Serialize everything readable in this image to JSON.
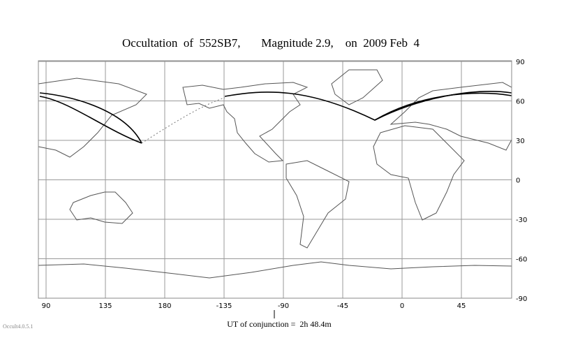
{
  "title": "Occultation  of  552SB7,       Magnitude 2.9,    on  2009 Feb  4",
  "map": {
    "xticks": [
      90,
      135,
      180,
      -135,
      -90,
      -45,
      0,
      45
    ],
    "yticks": [
      90,
      60,
      30,
      0,
      -30,
      -60,
      -90
    ]
  },
  "conjunction_label": "UT of conjunction =  2h 48.4m",
  "version": "Occult4.0.5.1"
}
